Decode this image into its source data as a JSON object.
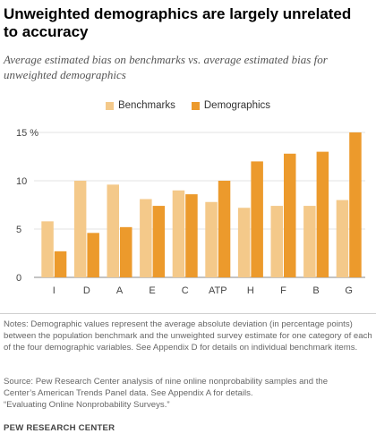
{
  "title": "Unweighted demographics are largely unrelated to accuracy",
  "subtitle": "Average estimated bias on benchmarks vs. average estimated bias for unweighted demographics",
  "notes": "Notes: Demographic values represent the average absolute deviation (in percentage points) between the population benchmark and the unweighted survey estimate for one category of each of the four demographic variables. See Appendix D for details on individual benchmark items.",
  "source_lines": [
    "Source: Pew Research Center analysis of nine online nonprobability samples and the",
    "Center’s American Trends Panel data. See Appendix A for details.",
    "“Evaluating Online Nonprobability Surveys.”"
  ],
  "org": "PEW RESEARCH CENTER",
  "colors": {
    "benchmarks": "#F4C98A",
    "demographics": "#EC9A2C"
  },
  "chart_data": {
    "type": "bar",
    "title": "Unweighted demographics are largely unrelated to accuracy",
    "categories": [
      "I",
      "D",
      "A",
      "E",
      "C",
      "ATP",
      "H",
      "F",
      "B",
      "G"
    ],
    "series": [
      {
        "name": "Benchmarks",
        "values": [
          5.8,
          10.0,
          9.6,
          8.1,
          9.0,
          7.8,
          7.2,
          7.4,
          7.4,
          8.0
        ]
      },
      {
        "name": "Demographics",
        "values": [
          2.7,
          4.6,
          5.2,
          7.4,
          8.6,
          10.0,
          12.0,
          12.8,
          13.0,
          15.0
        ]
      }
    ],
    "ylim": [
      0,
      15
    ],
    "yticks": [
      0,
      5,
      10,
      15
    ],
    "ytick_labels": [
      "0",
      "5",
      "10",
      "15 %"
    ],
    "grid": true,
    "legend": "top-center"
  }
}
